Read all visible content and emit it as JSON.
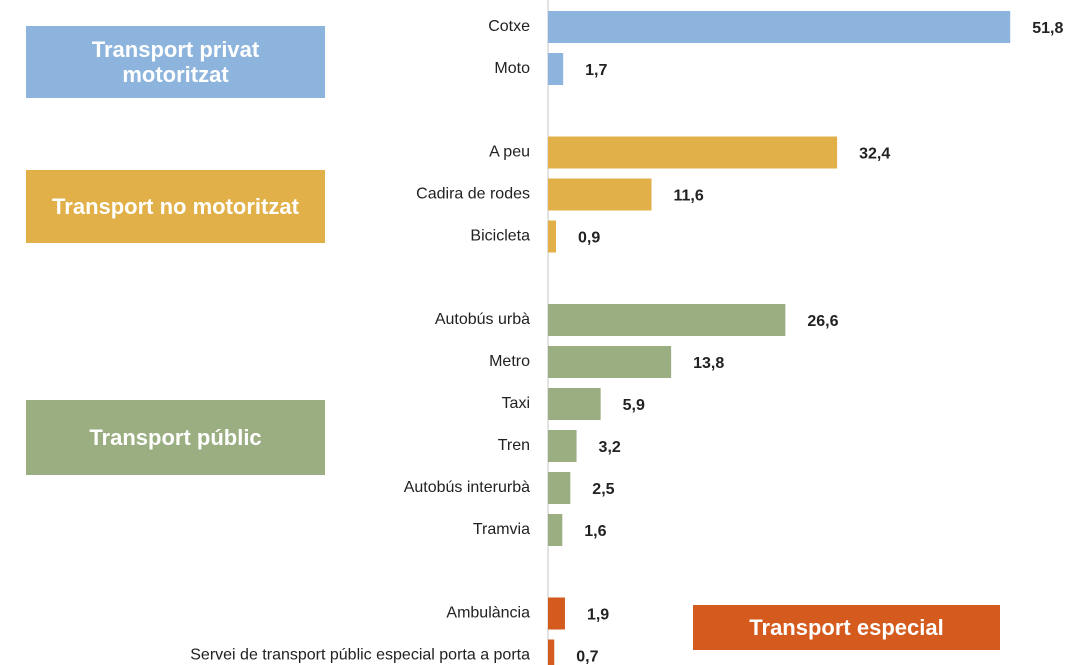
{
  "chart_data": {
    "type": "bar",
    "orientation": "horizontal",
    "xlim": [
      0,
      52
    ],
    "series": [
      {
        "name": "Transport privat motoritzat",
        "color": "#8db4dc",
        "categories": [
          "Cotxe",
          "Moto"
        ],
        "values": [
          51.8,
          1.7
        ],
        "value_labels": [
          "51,8",
          "1,7"
        ]
      },
      {
        "name": "Transport no motoritzat",
        "color": "#e2b048",
        "categories": [
          "A peu",
          "Cadira de rodes",
          "Bicicleta"
        ],
        "values": [
          32.4,
          11.6,
          0.9
        ],
        "value_labels": [
          "32,4",
          "11,6",
          "0,9"
        ]
      },
      {
        "name": "Transport públic",
        "color": "#9aae82",
        "categories": [
          "Autobús urbà",
          "Metro",
          "Taxi",
          "Tren",
          "Autobús interurbà",
          "Tramvia"
        ],
        "values": [
          26.6,
          13.8,
          5.9,
          3.2,
          2.5,
          1.6
        ],
        "value_labels": [
          "26,6",
          "13,8",
          "5,9",
          "3,2",
          "2,5",
          "1,6"
        ]
      },
      {
        "name": "Transport especial",
        "color": "#d45a1e",
        "categories": [
          "Ambulància",
          "Servei de transport públic especial porta a porta"
        ],
        "values": [
          1.9,
          0.7
        ],
        "value_labels": [
          "1,9",
          "0,7"
        ]
      }
    ]
  }
}
